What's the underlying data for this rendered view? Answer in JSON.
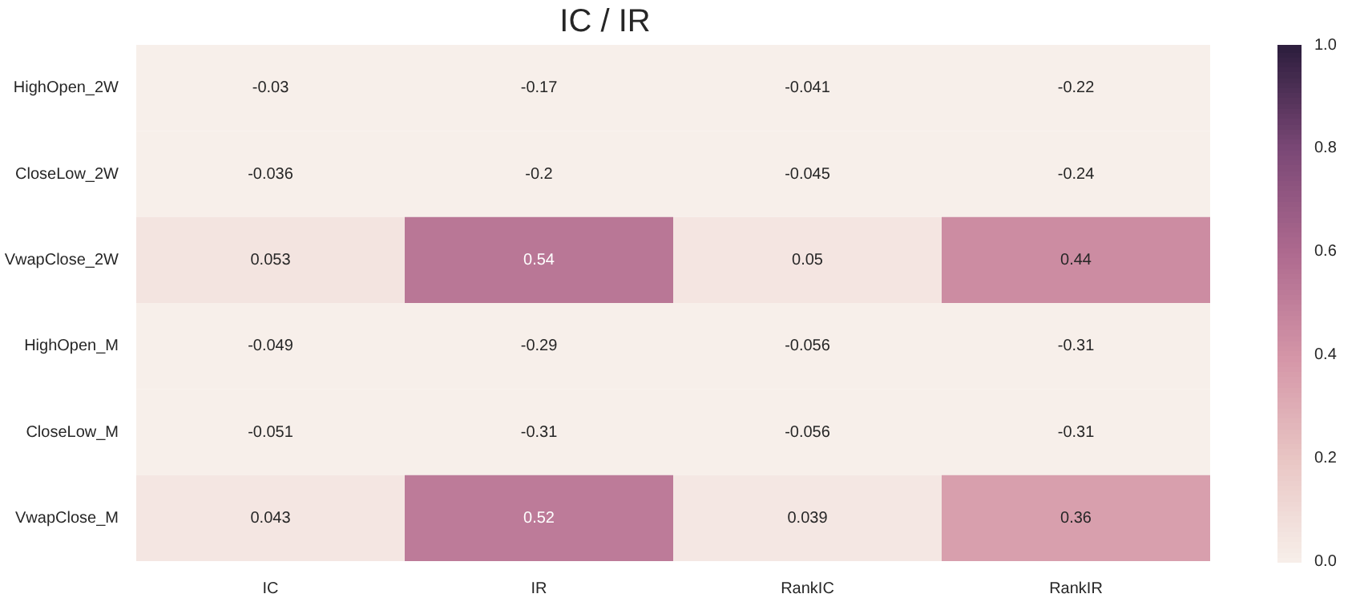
{
  "chart_data": {
    "type": "heatmap",
    "title": "IC / IR",
    "categories": [
      "IC",
      "IR",
      "RankIC",
      "RankIR"
    ],
    "y_categories": [
      "HighOpen_2W",
      "CloseLow_2W",
      "VwapClose_2W",
      "HighOpen_M",
      "CloseLow_M",
      "VwapClose_M"
    ],
    "cells": [
      [
        -0.03,
        -0.17,
        -0.041,
        -0.22
      ],
      [
        -0.036,
        -0.2,
        -0.045,
        -0.24
      ],
      [
        0.053,
        0.54,
        0.05,
        0.44
      ],
      [
        -0.049,
        -0.29,
        -0.056,
        -0.31
      ],
      [
        -0.051,
        -0.31,
        -0.056,
        -0.31
      ],
      [
        0.043,
        0.52,
        0.039,
        0.36
      ]
    ],
    "data_labels": true,
    "clim": [
      0,
      1
    ],
    "cticks": [
      {
        "value": 0,
        "label": "0.0"
      },
      0.2,
      0.4,
      0.6,
      0.8,
      {
        "value": 1,
        "label": "1.0"
      }
    ]
  }
}
